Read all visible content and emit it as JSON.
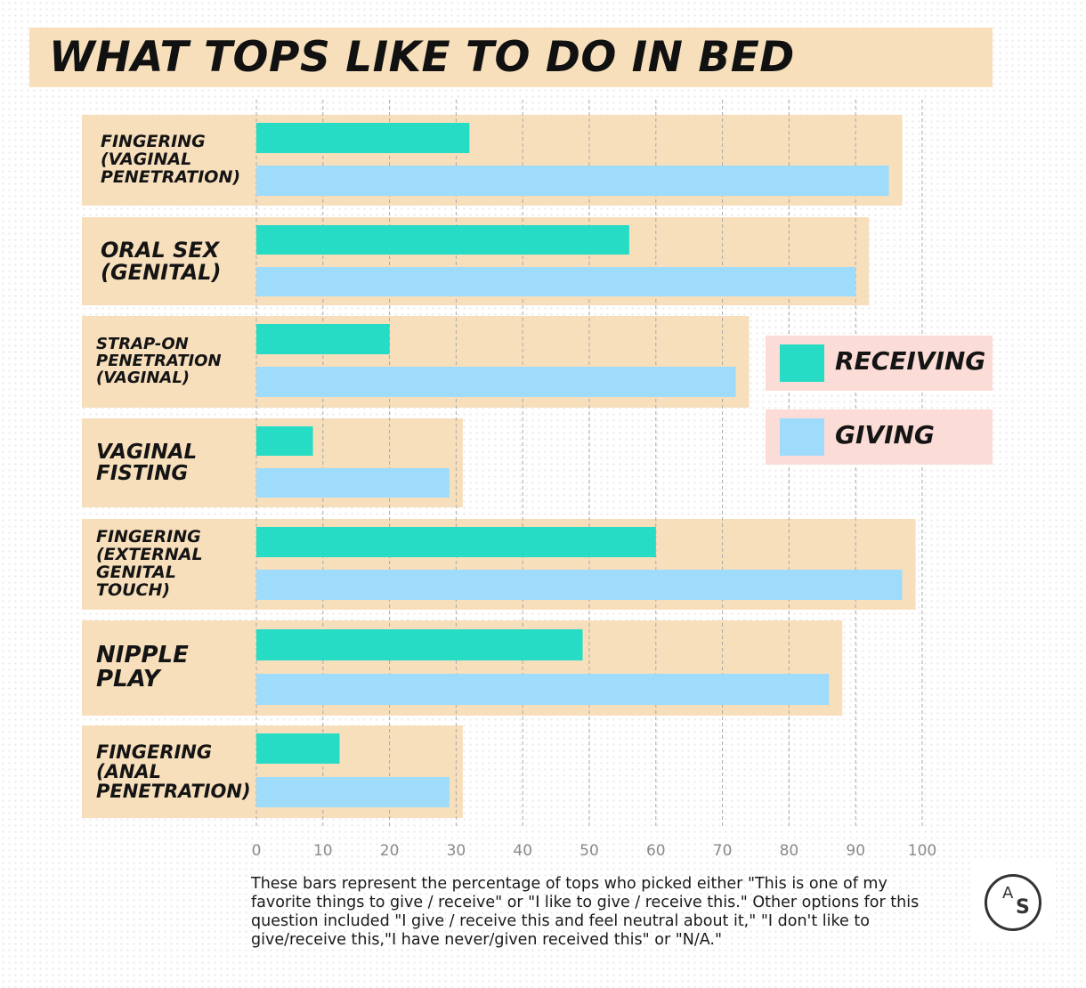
{
  "title": "WHAT TOPS LIKE TO DO IN BED",
  "chart_data": {
    "type": "bar",
    "orientation": "horizontal",
    "categories": [
      "FINGERING\n(VAGINAL\nPENETRATION)",
      "ORAL SEX\n(GENITAL)",
      "STRAP-ON\nPENETRATION\n(VAGINAL)",
      "VAGINAL\nFISTING",
      "FINGERING\n(EXTERNAL\nGENITAL\nTOUCH)",
      "NIPPLE\nPLAY",
      "FINGERING\n(ANAL\nPENETRATION)"
    ],
    "series": [
      {
        "name": "RECEIVING",
        "color": "#26dcc5",
        "values": [
          32,
          56,
          20,
          8.5,
          60,
          49,
          12.5
        ]
      },
      {
        "name": "GIVING",
        "color": "#9fdcfc",
        "values": [
          95,
          90,
          72,
          29,
          97,
          86,
          29
        ]
      }
    ],
    "xlim": [
      0,
      100
    ],
    "ticks": [
      "0",
      "10",
      "20",
      "30",
      "40",
      "50",
      "60",
      "70",
      "80",
      "90",
      "100"
    ],
    "grid": true,
    "legend_position": "right"
  },
  "colors": {
    "band": "#f7dfbc",
    "legend_bg": "#fbdcd6"
  },
  "footnote": "These bars represent the percentage of tops who picked either \"This is one of my favorite things to give / receive\" or \"I like to give / receive this.\" Other options for this question included \"I give / receive this and feel neutral about it,\" \"I don't like to give/receive this,\"I have never/given received this\" or \"N/A.\"",
  "logo": {
    "letters": [
      "A",
      "S"
    ],
    "icon": "autostraddle-logo-icon"
  }
}
